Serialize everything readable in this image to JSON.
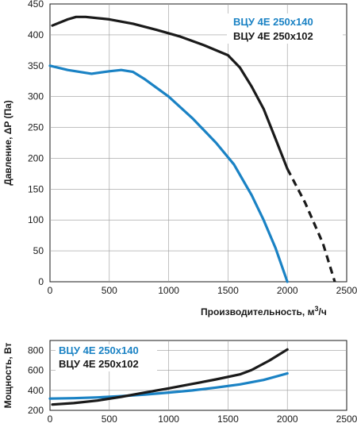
{
  "colors": {
    "blue": "#1a82c4",
    "black": "#1a1a1a",
    "grid": "#9a9a9a"
  },
  "chart_data": [
    {
      "type": "line",
      "xlabel": "Производительность,",
      "xlabel_unit_base": "м",
      "xlabel_unit_sup": "3",
      "xlabel_unit_tail": "/ч",
      "ylabel": "Давление, ΔP (Па)",
      "xlim": [
        0,
        2500
      ],
      "ylim": [
        0,
        450
      ],
      "grid": true,
      "legend": "top-right",
      "x_ticks": [
        "0",
        "500",
        "1000",
        "1500",
        "2000",
        "2500"
      ],
      "y_ticks": [
        "0",
        "50",
        "100",
        "150",
        "200",
        "250",
        "300",
        "350",
        "400",
        "450"
      ],
      "series": [
        {
          "name": "ВЦУ 4Е 250x140",
          "color": "#1a82c4",
          "x": [
            0,
            150,
            350,
            500,
            600,
            700,
            800,
            1000,
            1200,
            1400,
            1550,
            1700,
            1800,
            1900,
            2000
          ],
          "y": [
            350,
            343,
            337,
            341,
            343,
            340,
            328,
            300,
            265,
            225,
            190,
            140,
            100,
            55,
            0
          ]
        },
        {
          "name": "ВЦУ 4Е 250x102",
          "color": "#1a1a1a",
          "x": [
            20,
            150,
            220,
            300,
            500,
            700,
            900,
            1100,
            1300,
            1500,
            1600,
            1700,
            1800,
            1900,
            2000
          ],
          "y": [
            415,
            425,
            429,
            429,
            425,
            418,
            408,
            397,
            383,
            367,
            347,
            316,
            280,
            232,
            183
          ],
          "dashed_extension": {
            "x": [
              2000,
              2150,
              2300,
              2400
            ],
            "y": [
              183,
              128,
              62,
              0
            ]
          }
        }
      ]
    },
    {
      "type": "line",
      "ylabel": "Мощность, Вт",
      "xlim": [
        0,
        2500
      ],
      "ylim": [
        200,
        900
      ],
      "grid": true,
      "legend": "top-left",
      "x_ticks": [
        "0",
        "500",
        "1000",
        "1500",
        "2000",
        "2500"
      ],
      "y_ticks": [
        "200",
        "400",
        "600",
        "800"
      ],
      "series": [
        {
          "name": "ВЦУ 4Е 250x140",
          "color": "#1a82c4",
          "x": [
            0,
            200,
            400,
            600,
            800,
            1000,
            1200,
            1400,
            1600,
            1800,
            2000
          ],
          "y": [
            318,
            322,
            330,
            342,
            358,
            378,
            400,
            428,
            460,
            505,
            570
          ]
        },
        {
          "name": "ВЦУ 4Е 250x102",
          "color": "#1a1a1a",
          "x": [
            20,
            200,
            400,
            600,
            800,
            1000,
            1200,
            1400,
            1600,
            1700,
            1850,
            2000
          ],
          "y": [
            258,
            272,
            298,
            335,
            378,
            420,
            465,
            510,
            560,
            605,
            700,
            810
          ]
        }
      ]
    }
  ]
}
